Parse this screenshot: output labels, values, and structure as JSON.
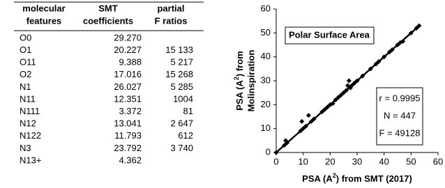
{
  "table": {
    "header": [
      [
        "molecular",
        "features"
      ],
      [
        "SMT",
        "coefficients"
      ],
      [
        "partial",
        "F ratios"
      ]
    ],
    "rows": [
      [
        "O0",
        "29.270"
      ],
      [
        "O1",
        "20.227",
        "15 133"
      ],
      [
        "O11",
        "9.388",
        "5 217"
      ],
      [
        "O2",
        "17.016",
        "15 268"
      ],
      [
        "N1",
        "26.027",
        "5 285"
      ],
      [
        "N11",
        "12.351",
        "1004"
      ],
      [
        "N111",
        "3.372",
        "81"
      ],
      [
        "N12",
        "13.041",
        "2 647"
      ],
      [
        "N122",
        "11.793",
        "612"
      ],
      [
        "N3",
        "23.792",
        "3 740"
      ],
      [
        "N13+",
        "4.362"
      ]
    ]
  },
  "chart_data": {
    "type": "scatter",
    "title": "Polar Surface Area",
    "x_label": [
      "PSA (A",
      "2",
      ") from SMT (2017)"
    ],
    "y_label": [
      [
        "PSA (A",
        "2",
        ") from"
      ],
      [
        "Molinspiration"
      ]
    ],
    "annotation": [
      "r = 0.9995",
      "N = 447",
      "F = 49128"
    ],
    "xlim": [
      0,
      60
    ],
    "ylim": [
      0,
      60
    ],
    "xticks": [
      0,
      10,
      20,
      30,
      40,
      50,
      60
    ],
    "yticks": [
      0,
      10,
      20,
      30,
      40,
      50,
      60
    ],
    "grid": false,
    "color": "#000000",
    "x": [
      0,
      3,
      3.5,
      4,
      9,
      9.5,
      10,
      11,
      12,
      13,
      14,
      17,
      18,
      19,
      20,
      21,
      22,
      23,
      24,
      25,
      26,
      26.5,
      27,
      27.5,
      28,
      29,
      30,
      32,
      35,
      37,
      38,
      40,
      42,
      43,
      45,
      46,
      47,
      50,
      52,
      53
    ],
    "y": [
      0,
      3,
      5,
      4,
      9,
      13,
      10,
      11,
      15.5,
      13,
      14,
      17,
      18,
      19,
      20,
      20.5,
      22,
      23,
      24,
      25,
      26,
      28,
      30,
      27,
      28,
      29,
      30,
      32,
      35,
      37,
      38,
      40,
      42,
      43,
      45,
      46,
      46.5,
      50,
      52,
      53
    ],
    "fit_line": {
      "x": [
        0,
        53
      ],
      "y": [
        0,
        53
      ]
    }
  }
}
